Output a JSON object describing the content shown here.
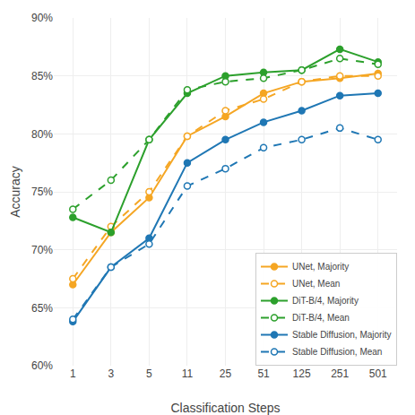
{
  "chart_data": {
    "type": "line",
    "categories": [
      "1",
      "3",
      "5",
      "11",
      "25",
      "51",
      "125",
      "251",
      "501"
    ],
    "series": [
      {
        "name": "UNet, Majority",
        "color": "#f5a623",
        "line_style": "solid",
        "marker": "circle",
        "values": [
          67.0,
          71.5,
          74.5,
          79.8,
          81.5,
          83.5,
          84.5,
          84.8,
          85.2
        ]
      },
      {
        "name": "UNet, Mean",
        "color": "#f5a623",
        "line_style": "dashed",
        "marker": "circle-open",
        "values": [
          67.5,
          72.0,
          75.0,
          79.8,
          82.0,
          83.0,
          84.5,
          85.0,
          85.0
        ]
      },
      {
        "name": "DiT-B/4, Majority",
        "color": "#2ca02c",
        "line_style": "solid",
        "marker": "circle",
        "values": [
          72.8,
          71.5,
          79.5,
          83.5,
          85.0,
          85.3,
          85.5,
          87.3,
          86.2
        ]
      },
      {
        "name": "DiT-B/4, Mean",
        "color": "#2ca02c",
        "line_style": "dashed",
        "marker": "circle-open",
        "values": [
          73.5,
          76.0,
          79.5,
          83.8,
          84.5,
          84.8,
          85.5,
          86.5,
          86.0
        ]
      },
      {
        "name": "Stable Diffusion, Majority",
        "color": "#1f77b4",
        "line_style": "solid",
        "marker": "circle",
        "values": [
          63.8,
          68.5,
          71.0,
          77.5,
          79.5,
          81.0,
          82.0,
          83.3,
          83.5
        ]
      },
      {
        "name": "Stable Diffusion, Mean",
        "color": "#1f77b4",
        "line_style": "dashed",
        "marker": "circle-open",
        "values": [
          64.0,
          68.5,
          70.5,
          75.5,
          77.0,
          78.8,
          79.5,
          80.5,
          79.5
        ]
      }
    ],
    "xlabel": "Classification Steps",
    "ylabel": "Accuracy",
    "ylim": [
      60,
      90
    ],
    "yticks": [
      {
        "value": 60,
        "label": "60%"
      },
      {
        "value": 65,
        "label": "65%"
      },
      {
        "value": 70,
        "label": "70%"
      },
      {
        "value": 75,
        "label": "75%"
      },
      {
        "value": 80,
        "label": "80%"
      },
      {
        "value": 85,
        "label": "85%"
      },
      {
        "value": 90,
        "label": "90%"
      }
    ],
    "grid": true,
    "legend": "lower right"
  }
}
